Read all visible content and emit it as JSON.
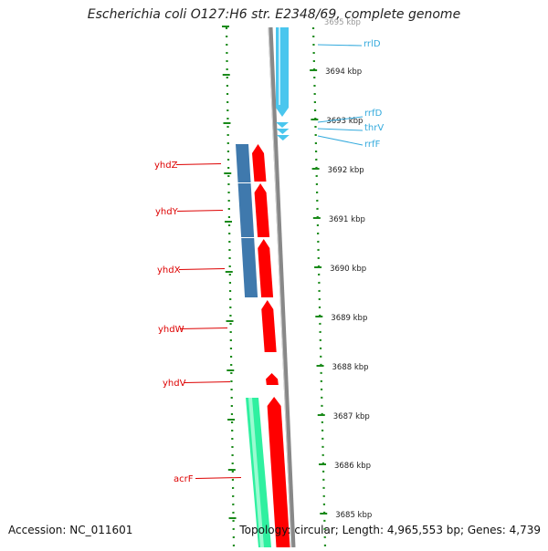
{
  "title": "Escherichia coli O127:H6 str. E2348/69, complete genome",
  "footer": {
    "accession": "Accession: NC_011601",
    "summary": "Topology: circular; Length: 4,965,553 bp; Genes: 4,739"
  },
  "scale_ticks": [
    {
      "label": "3695 kbp",
      "kbp": 3695
    },
    {
      "label": "3694 kbp",
      "kbp": 3694
    },
    {
      "label": "3693 kbp",
      "kbp": 3693
    },
    {
      "label": "3692 kbp",
      "kbp": 3692
    },
    {
      "label": "3691 kbp",
      "kbp": 3691
    },
    {
      "label": "3690 kbp",
      "kbp": 3690
    },
    {
      "label": "3689 kbp",
      "kbp": 3689
    },
    {
      "label": "3688 kbp",
      "kbp": 3688
    },
    {
      "label": "3687 kbp",
      "kbp": 3687
    },
    {
      "label": "3686 kbp",
      "kbp": 3686
    },
    {
      "label": "3685 kbp",
      "kbp": 3685
    }
  ],
  "genes_left": [
    {
      "name": "yhdZ"
    },
    {
      "name": "yhdY"
    },
    {
      "name": "yhdX"
    },
    {
      "name": "yhdW"
    },
    {
      "name": "yhdV"
    },
    {
      "name": "acrF"
    }
  ],
  "genes_right": [
    {
      "name": "rrlD"
    },
    {
      "name": "rrfD"
    },
    {
      "name": "thrV"
    },
    {
      "name": "rrfF"
    }
  ],
  "colors": {
    "cds": "#ff0000",
    "rna": "#4ac6ee",
    "blast_blue": "#3f79ad",
    "blast_green": "#2ff0a0",
    "backbone": "#888888",
    "ruler": "#1a8a1a",
    "label_red": "#dd0000",
    "label_blue": "#33aadd"
  }
}
